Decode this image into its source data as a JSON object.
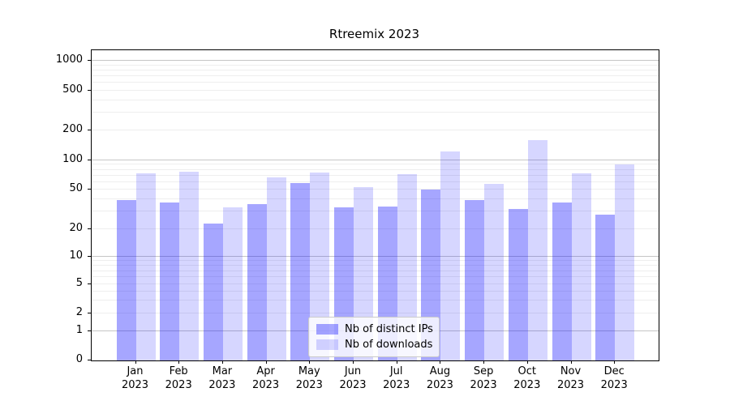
{
  "title": "Rtreemix 2023",
  "chart_data": {
    "type": "bar",
    "title": "Rtreemix 2023",
    "categories": [
      "Jan 2023",
      "Feb 2023",
      "Mar 2023",
      "Apr 2023",
      "May 2023",
      "Jun 2023",
      "Jul 2023",
      "Aug 2023",
      "Sep 2023",
      "Oct 2023",
      "Nov 2023",
      "Dec 2023"
    ],
    "series": [
      {
        "name": "Nb of distinct IPs",
        "color": "#0000ff59",
        "values": [
          39,
          37,
          23,
          36,
          58,
          33,
          34,
          50,
          39,
          32,
          37,
          28
        ]
      },
      {
        "name": "Nb of downloads",
        "color": "#0000ff29",
        "values": [
          74,
          77,
          33,
          67,
          75,
          53,
          72,
          123,
          57,
          160,
          73,
          91
        ]
      }
    ],
    "y_axis": {
      "scale": "symlog",
      "tick_values": [
        0,
        1,
        2,
        5,
        10,
        20,
        50,
        100,
        200,
        500,
        1000
      ],
      "tick_labels": [
        "0",
        "1",
        "2",
        "5",
        "10",
        "20",
        "50",
        "100",
        "200",
        "500",
        "1000"
      ],
      "range": [
        0,
        1300
      ]
    },
    "x_axis": {
      "tick_label_line2": "2023"
    },
    "grid": {
      "major_lines": [
        1,
        10,
        100,
        1000
      ],
      "minor_lines": [
        2,
        3,
        4,
        5,
        6,
        7,
        8,
        9,
        20,
        30,
        40,
        50,
        60,
        70,
        80,
        90,
        200,
        300,
        400,
        500,
        600,
        700,
        800,
        900
      ],
      "major_color": "#c6c6c6",
      "minor_color": "#eeeeee"
    },
    "legend": {
      "position": "lower center"
    },
    "colors": {
      "axis": "#000000",
      "text": "#000000",
      "background": "#ffffff"
    }
  }
}
